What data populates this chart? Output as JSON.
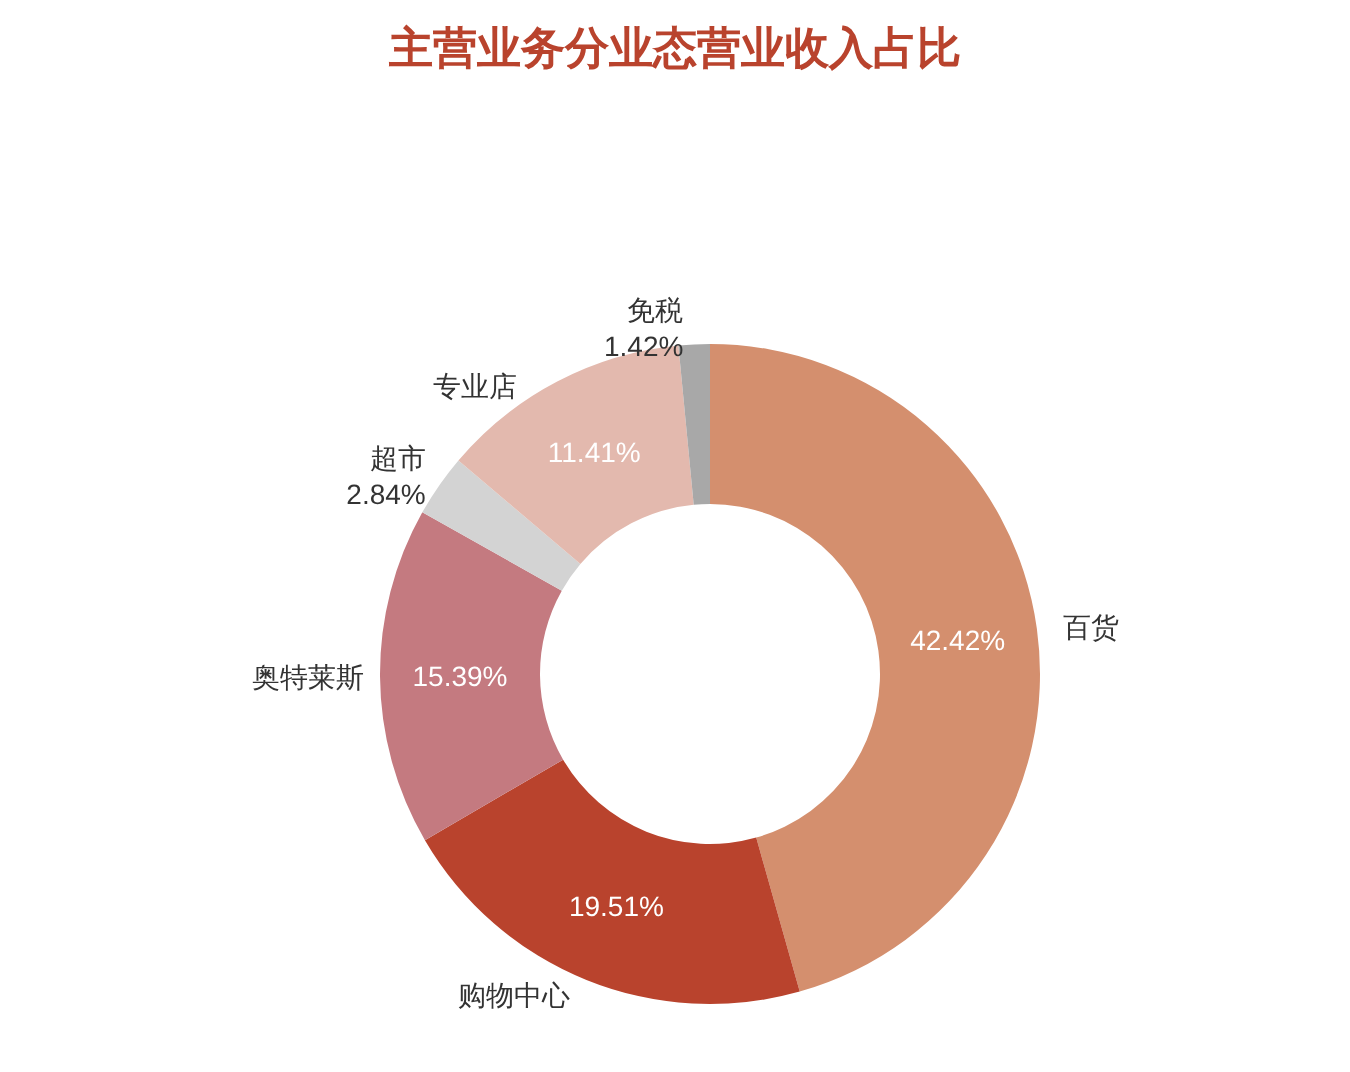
{
  "chart_data": {
    "type": "donut",
    "title": "主营业务分业态营业收入占比",
    "categories": [
      "百货",
      "购物中心",
      "奥特莱斯",
      "超市",
      "专业店",
      "免税"
    ],
    "values": [
      42.42,
      19.51,
      15.39,
      2.84,
      11.41,
      1.42
    ],
    "value_labels": [
      "42.42%",
      "19.51%",
      "15.39%",
      "2.84%",
      "11.41%",
      "1.42%"
    ],
    "colors": [
      "#d48f6e",
      "#b9432d",
      "#c47a80",
      "#d3d3d3",
      "#e3b9ae",
      "#a8a8a8"
    ],
    "legend": false
  }
}
